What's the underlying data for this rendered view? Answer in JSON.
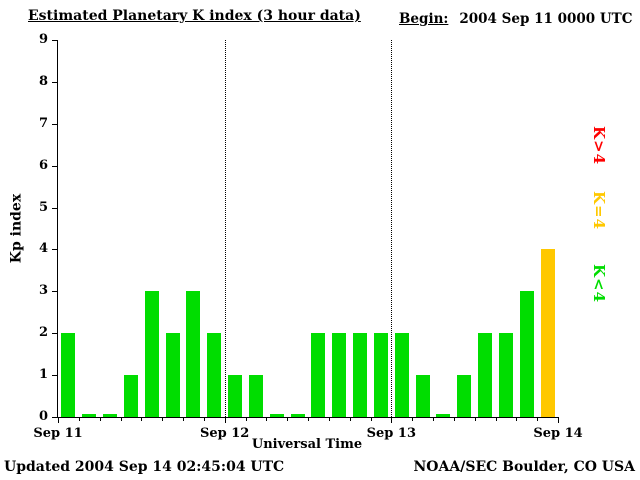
{
  "header": {
    "title": "Estimated Planetary K index (3 hour data)",
    "begin_label": "Begin:",
    "begin_value": "2004 Sep 11 0000 UTC"
  },
  "footer": {
    "updated": "Updated 2004 Sep 14 02:45:04 UTC",
    "source": "NOAA/SEC Boulder, CO USA"
  },
  "legend": [
    {
      "label": "K>4",
      "color": "#ff0000"
    },
    {
      "label": "K=4",
      "color": "#ffc800"
    },
    {
      "label": "K<4",
      "color": "#00dd00"
    }
  ],
  "chart_data": {
    "type": "bar",
    "title": "Estimated Planetary K index (3 hour data)",
    "xlabel": "Universal Time",
    "ylabel": "Kp index",
    "ylim": [
      0,
      9
    ],
    "y_ticks": [
      0,
      1,
      2,
      3,
      4,
      5,
      6,
      7,
      8,
      9
    ],
    "x_tick_labels": [
      "Sep 11",
      "Sep 12",
      "Sep 13",
      "Sep 14"
    ],
    "interval_hours": 3,
    "bars_per_day": 8,
    "values": [
      2,
      0,
      0,
      1,
      3,
      2,
      3,
      2,
      1,
      1,
      0,
      0,
      2,
      2,
      2,
      2,
      2,
      1,
      0,
      1,
      2,
      2,
      3,
      4
    ],
    "color_rule": "green if K<4, yellow if K=4, red if K>4",
    "bar_colors": {
      "low": "#00dd00",
      "mid": "#ffc800",
      "high": "#ff0000"
    },
    "grid": "dotted vertical lines at day boundaries",
    "legend_position": "right, rotated 90deg"
  }
}
